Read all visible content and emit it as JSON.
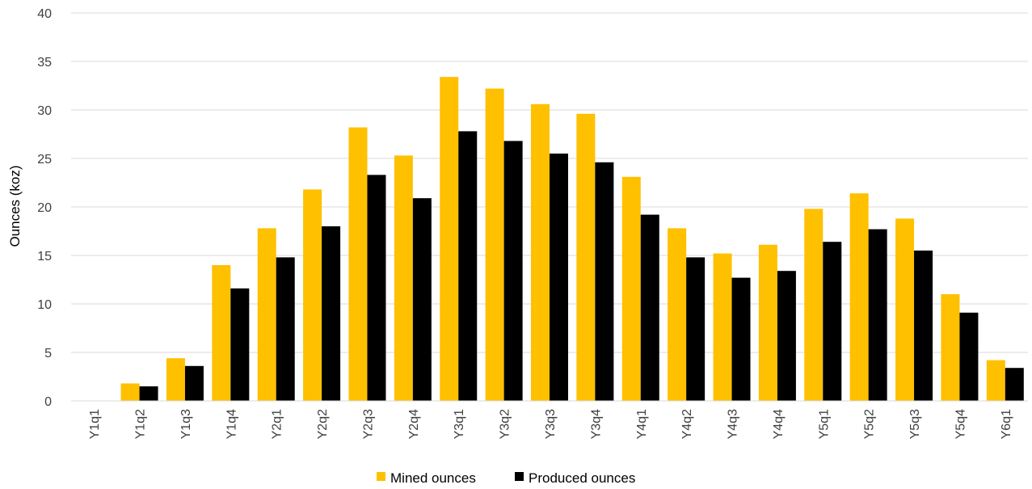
{
  "chart_data": {
    "type": "bar",
    "title": "",
    "xlabel": "",
    "ylabel": "Ounces (koz)",
    "ylim": [
      0,
      40
    ],
    "yticks": [
      0,
      5,
      10,
      15,
      20,
      25,
      30,
      35,
      40
    ],
    "grid": true,
    "legend_position": "bottom",
    "categories": [
      "Y1q1",
      "Y1q2",
      "Y1q3",
      "Y1q4",
      "Y2q1",
      "Y2q2",
      "Y2q3",
      "Y2q4",
      "Y3q1",
      "Y3q2",
      "Y3q3",
      "Y3q4",
      "Y4q1",
      "Y4q2",
      "Y4q3",
      "Y4q4",
      "Y5q1",
      "Y5q2",
      "Y5q3",
      "Y5q4",
      "Y6q1"
    ],
    "series": [
      {
        "name": "Mined ounces",
        "color": "#FFC000",
        "values": [
          0,
          1.8,
          4.4,
          14.0,
          17.8,
          21.8,
          28.2,
          25.3,
          33.4,
          32.2,
          30.6,
          29.6,
          23.1,
          17.8,
          15.2,
          16.1,
          19.8,
          21.4,
          18.8,
          11.0,
          4.2
        ]
      },
      {
        "name": "Produced ounces",
        "color": "#000000",
        "values": [
          0,
          1.5,
          3.6,
          11.6,
          14.8,
          18.0,
          23.3,
          20.9,
          27.8,
          26.8,
          25.5,
          24.6,
          19.2,
          14.8,
          12.7,
          13.4,
          16.4,
          17.7,
          15.5,
          9.1,
          3.4
        ]
      }
    ]
  }
}
